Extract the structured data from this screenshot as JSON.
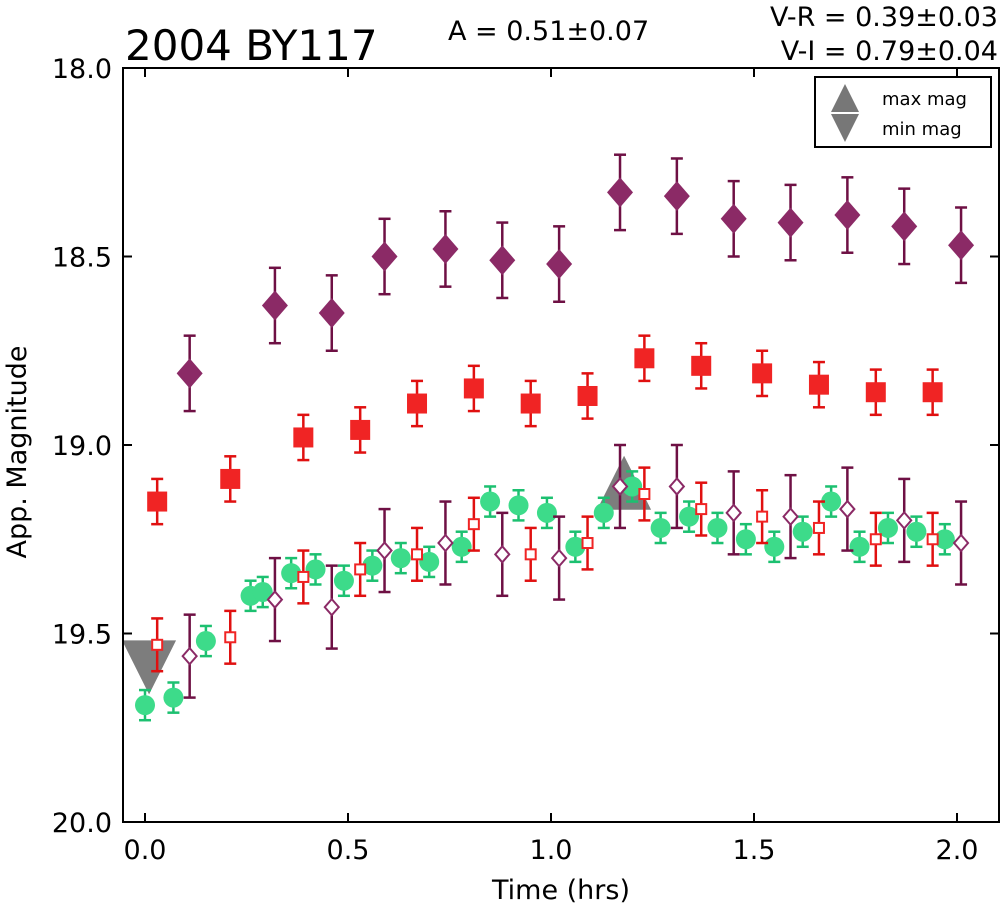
{
  "chart_data": {
    "type": "scatter",
    "title": "2004 BY117",
    "annotations": {
      "amplitude": "A  = 0.51±0.07",
      "v_r": "V-R = 0.39±0.03",
      "v_i": "V-I  = 0.79±0.04"
    },
    "xlabel": "Time (hrs)",
    "ylabel": "App. Magnitude",
    "xlim": [
      -0.05,
      2.1
    ],
    "ylim": [
      20.0,
      18.0
    ],
    "y_inverted": true,
    "grid": false,
    "xticks": [
      "0.0",
      "0.5",
      "1.0",
      "1.5",
      "2.0"
    ],
    "yticks": [
      "18.0",
      "18.5",
      "19.0",
      "19.5",
      "20.0"
    ],
    "legend": {
      "placement": "top-right",
      "entries": [
        {
          "label": "max mag",
          "marker": "triangle-up",
          "color": "#777777"
        },
        {
          "label": "min mag",
          "marker": "triangle-down",
          "color": "#777777"
        }
      ]
    },
    "extrema_markers": [
      {
        "kind": "max mag",
        "x": 1.18,
        "y": 19.1
      },
      {
        "kind": "min mag",
        "x": 0.01,
        "y": 19.59
      }
    ],
    "series": [
      {
        "marker": "filled-diamond",
        "color": "#8b2a66",
        "errcolor": "#6e1044",
        "x": [
          0.11,
          0.32,
          0.46,
          0.59,
          0.74,
          0.88,
          1.02,
          1.17,
          1.31,
          1.45,
          1.59,
          1.73,
          1.87,
          2.01
        ],
        "y": [
          18.81,
          18.63,
          18.65,
          18.5,
          18.48,
          18.51,
          18.52,
          18.33,
          18.34,
          18.4,
          18.41,
          18.39,
          18.42,
          18.47
        ],
        "err": [
          0.1,
          0.1,
          0.1,
          0.1,
          0.1,
          0.1,
          0.1,
          0.1,
          0.1,
          0.1,
          0.1,
          0.1,
          0.1,
          0.1
        ]
      },
      {
        "marker": "filled-square",
        "color": "#f02424",
        "errcolor": "#e01010",
        "x": [
          0.03,
          0.21,
          0.39,
          0.53,
          0.67,
          0.81,
          0.95,
          1.09,
          1.23,
          1.37,
          1.52,
          1.66,
          1.8,
          1.94
        ],
        "y": [
          19.15,
          19.09,
          18.98,
          18.96,
          18.89,
          18.85,
          18.89,
          18.87,
          18.77,
          18.79,
          18.81,
          18.84,
          18.86,
          18.86
        ],
        "err": [
          0.06,
          0.06,
          0.06,
          0.06,
          0.06,
          0.06,
          0.06,
          0.06,
          0.06,
          0.06,
          0.06,
          0.06,
          0.06,
          0.06
        ]
      },
      {
        "marker": "filled-circle",
        "color": "#3ddb8a",
        "errcolor": "#1cc070",
        "x": [
          0.0,
          0.07,
          0.15,
          0.26,
          0.29,
          0.36,
          0.42,
          0.49,
          0.56,
          0.63,
          0.7,
          0.78,
          0.85,
          0.92,
          0.99,
          1.06,
          1.13,
          1.2,
          1.27,
          1.34,
          1.41,
          1.48,
          1.55,
          1.62,
          1.69,
          1.76,
          1.83,
          1.9,
          1.97
        ],
        "y": [
          19.69,
          19.67,
          19.52,
          19.4,
          19.39,
          19.34,
          19.33,
          19.36,
          19.32,
          19.3,
          19.31,
          19.27,
          19.15,
          19.16,
          19.18,
          19.27,
          19.18,
          19.11,
          19.22,
          19.19,
          19.22,
          19.25,
          19.27,
          19.23,
          19.15,
          19.27,
          19.22,
          19.23,
          19.25
        ],
        "err": [
          0.04,
          0.04,
          0.04,
          0.04,
          0.04,
          0.04,
          0.04,
          0.04,
          0.04,
          0.04,
          0.04,
          0.04,
          0.04,
          0.04,
          0.04,
          0.04,
          0.04,
          0.04,
          0.04,
          0.04,
          0.04,
          0.04,
          0.04,
          0.04,
          0.04,
          0.04,
          0.04,
          0.04,
          0.04
        ]
      },
      {
        "marker": "open-square",
        "color": "#f02424",
        "errcolor": "#e01010",
        "x": [
          0.03,
          0.21,
          0.39,
          0.53,
          0.67,
          0.81,
          0.95,
          1.09,
          1.23,
          1.37,
          1.52,
          1.66,
          1.8,
          1.94
        ],
        "y": [
          19.53,
          19.51,
          19.35,
          19.33,
          19.29,
          19.21,
          19.29,
          19.26,
          19.13,
          19.17,
          19.19,
          19.22,
          19.25,
          19.25
        ],
        "err": [
          0.07,
          0.07,
          0.07,
          0.07,
          0.07,
          0.07,
          0.07,
          0.07,
          0.07,
          0.07,
          0.07,
          0.07,
          0.07,
          0.07
        ]
      },
      {
        "marker": "open-diamond",
        "color": "#8b2a66",
        "errcolor": "#6e1044",
        "x": [
          0.11,
          0.32,
          0.46,
          0.59,
          0.74,
          0.88,
          1.02,
          1.17,
          1.31,
          1.45,
          1.59,
          1.73,
          1.87,
          2.01
        ],
        "y": [
          19.56,
          19.41,
          19.43,
          19.28,
          19.26,
          19.29,
          19.3,
          19.11,
          19.11,
          19.18,
          19.19,
          19.17,
          19.2,
          19.26
        ],
        "err": [
          0.11,
          0.11,
          0.11,
          0.11,
          0.11,
          0.11,
          0.11,
          0.11,
          0.11,
          0.11,
          0.11,
          0.11,
          0.11,
          0.11
        ]
      }
    ]
  }
}
